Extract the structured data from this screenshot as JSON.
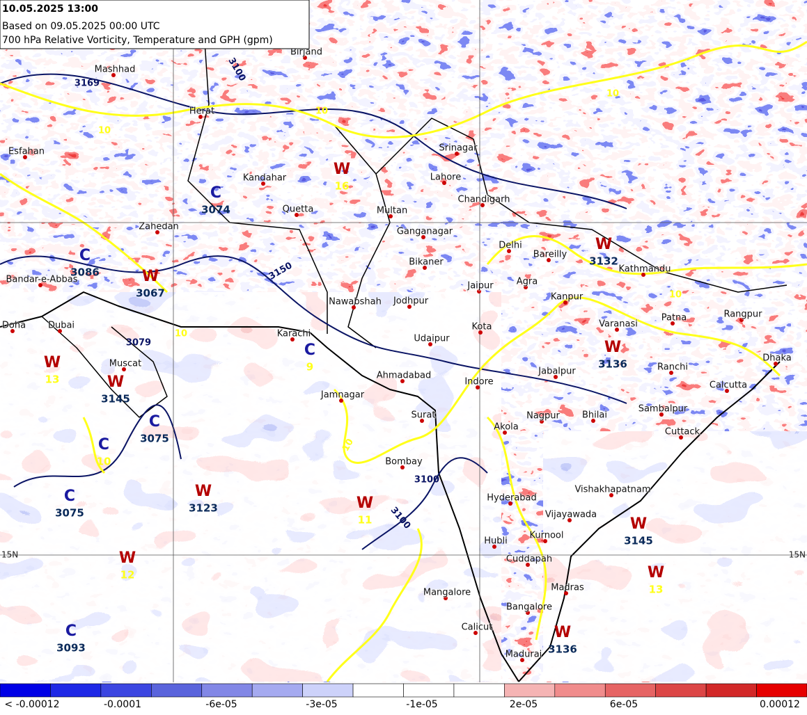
{
  "header": {
    "valid": "10.05.2025 13:00",
    "based": "Based on 09.05.2025 00:00 UTC",
    "description": "700 hPa Relative Vorticity, Temperature and GPH (gpm)"
  },
  "lat_labels": [
    "15N",
    "15N"
  ],
  "cities": [
    "Herat",
    "Kandahar",
    "Quetta",
    "Zahedan",
    "Bandar-e-Abbas",
    "Doha",
    "Dubai",
    "Muscat",
    "Karachi",
    "Nawabshah",
    "Multan",
    "Lahore",
    "Srinagar",
    "Chandigarh",
    "Ganganagar",
    "Bikaner",
    "Delhi",
    "Bareilly",
    "Jaipur",
    "Agra",
    "Kanpur",
    "Jodhpur",
    "Kota",
    "Udaipur",
    "Ahmadabad",
    "Indore",
    "Jabalpur",
    "Jamnagar",
    "Surat",
    "Akola",
    "Nagpur",
    "Bhilai",
    "Bombay",
    "Hyderabad",
    "Vishakhapatnam",
    "Vijayawada",
    "Kurnool",
    "Hubli",
    "Cuddapah",
    "Mangalore",
    "Madras",
    "Bangalore",
    "Calicut",
    "Madurai",
    "Varanasi",
    "Patna",
    "Ranchi",
    "Calcutta",
    "Sambalpur",
    "Cuttack",
    "Dhaka",
    "Rangpur",
    "Kathmandu",
    "Esfahan",
    "Mashhad",
    "Birjand"
  ],
  "systems": [
    {
      "letter": "W",
      "value": "3123",
      "kind": "gph"
    },
    {
      "letter": "C",
      "value": "3093",
      "kind": "gph"
    },
    {
      "letter": "W",
      "value": "12",
      "kind": "temp"
    },
    {
      "letter": "W",
      "value": "11",
      "kind": "temp"
    },
    {
      "letter": "W",
      "value": "3145",
      "kind": "gph"
    },
    {
      "letter": "W",
      "value": "13",
      "kind": "temp"
    },
    {
      "letter": "C",
      "value": "9",
      "kind": "temp"
    },
    {
      "letter": "W",
      "value": "16",
      "kind": "temp"
    },
    {
      "letter": "C",
      "value": "3074",
      "kind": "gph"
    },
    {
      "letter": "W",
      "value": "3136",
      "kind": "gph"
    },
    {
      "letter": "W",
      "value": "3132",
      "kind": "gph"
    },
    {
      "letter": "C",
      "value": "3075",
      "kind": "gph"
    },
    {
      "letter": "C",
      "value": "10",
      "kind": "temp"
    },
    {
      "letter": "W",
      "value": "13",
      "kind": "temp"
    },
    {
      "letter": "W",
      "value": "3145",
      "kind": "gph"
    },
    {
      "letter": "C",
      "value": "3075",
      "kind": "gph"
    },
    {
      "letter": "W",
      "value": "3067",
      "kind": "gph"
    },
    {
      "letter": "W",
      "value": "3136",
      "kind": "gph"
    },
    {
      "letter": "C",
      "value": "3086",
      "kind": "gph"
    }
  ],
  "contour_labels": [
    "3100",
    "3150",
    "3100",
    "3100",
    "3169",
    "3079",
    "10",
    "10",
    "10",
    "10",
    "10",
    "10"
  ],
  "colorbar": {
    "colors": [
      "#0000e6",
      "#1e28e6",
      "#3c46e1",
      "#5a64dc",
      "#8287e6",
      "#a5aaf0",
      "#cdd2fa",
      "#ffffff",
      "#ffffff",
      "#ffffff",
      "#f5b4b4",
      "#f08c8c",
      "#e66464",
      "#dc4646",
      "#d22828",
      "#e60000"
    ],
    "labels": [
      "< -0.00012",
      "-0.0001",
      "-6e-05",
      "-3e-05",
      "-1e-05",
      "2e-05",
      "6e-05",
      "0.00012"
    ]
  }
}
